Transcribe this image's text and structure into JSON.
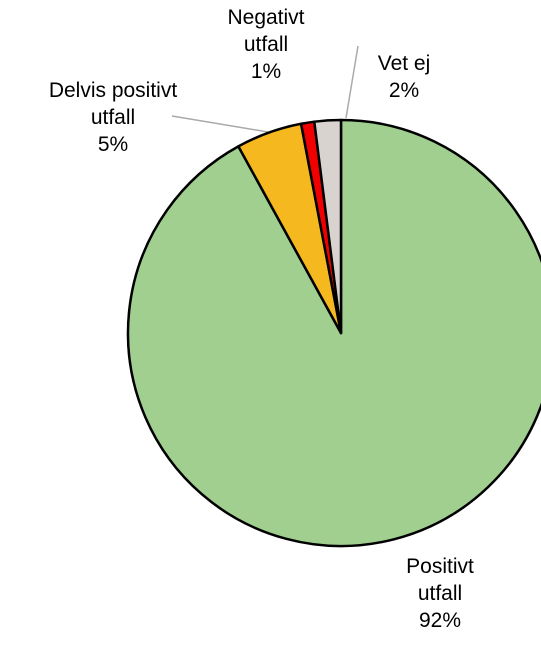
{
  "chart_data": {
    "type": "pie",
    "categories": [
      "Positivt utfall",
      "Delvis positivt utfall",
      "Negativt utfall",
      "Vet ej"
    ],
    "values": [
      92,
      5,
      1,
      2
    ],
    "value_labels": [
      "92%",
      "5%",
      "1%",
      "2%"
    ],
    "colors": [
      "#a1cf8f",
      "#f6b81f",
      "#f00000",
      "#d9d3cf"
    ]
  }
}
